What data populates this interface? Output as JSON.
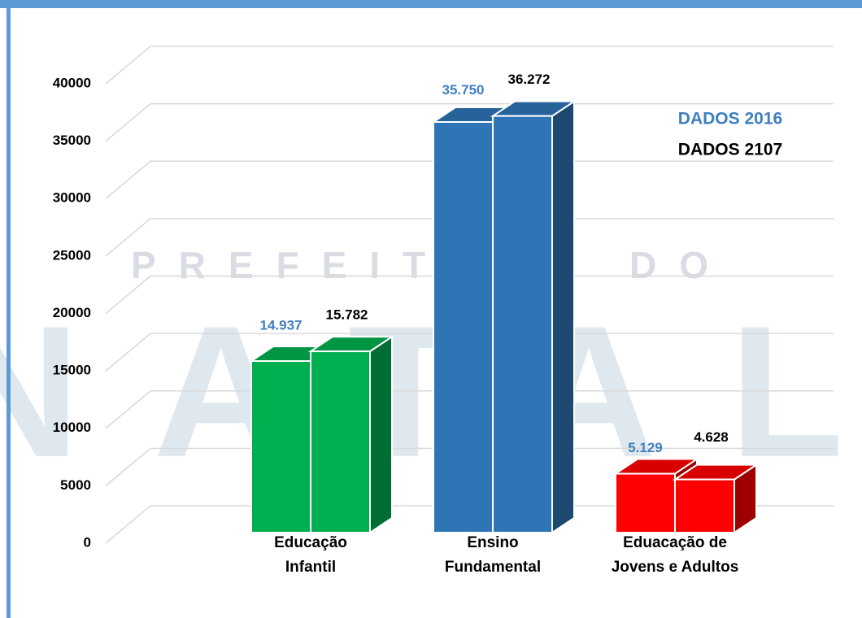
{
  "watermark": {
    "line1": "PREFEITURA DO",
    "line2": "NATAL"
  },
  "chart_data": {
    "type": "bar3d",
    "categories": [
      "Educação\nInfantil",
      "Ensino\nFundamental",
      "Eduacação de\nJovens e Adultos"
    ],
    "colors": [
      "#00b050",
      "#2e75b6",
      "#ff0000"
    ],
    "series": [
      {
        "name": "DADOS 2016",
        "color": "#3f7fc0",
        "values": [
          14937,
          35750,
          5129
        ],
        "value_labels": [
          "14.937",
          "35.750",
          "5.129"
        ]
      },
      {
        "name": "DADOS 2107",
        "color": "#000000",
        "values": [
          15782,
          36272,
          4628
        ],
        "value_labels": [
          "15.782",
          "36.272",
          "4.628"
        ]
      }
    ],
    "ylim": [
      0,
      40000
    ],
    "yticks": [
      0,
      5000,
      10000,
      15000,
      20000,
      25000,
      30000,
      35000,
      40000
    ],
    "grid": true,
    "legend": "upper right"
  }
}
